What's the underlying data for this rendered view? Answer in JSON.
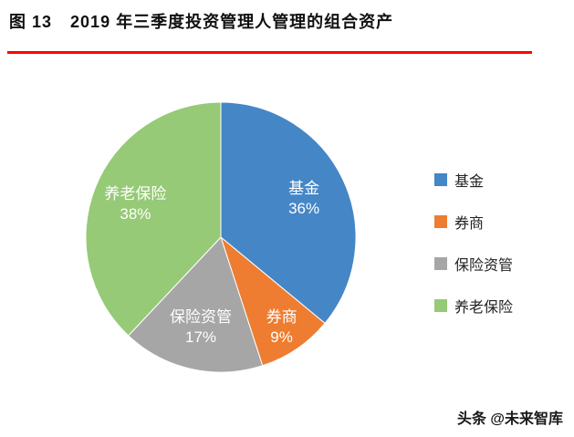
{
  "header": {
    "figure_label": "图 13",
    "title": "2019 年三季度投资管理人管理的组合资产"
  },
  "chart_data": {
    "type": "pie",
    "title": "2019 年三季度投资管理人管理的组合资产",
    "unit": "%",
    "start_angle_deg": 0,
    "direction": "clockwise",
    "legend_position": "right",
    "data_labels": "name_and_percent_inside",
    "slices": [
      {
        "label": "基金",
        "value": 36,
        "color": "#4586C6"
      },
      {
        "label": "券商",
        "value": 9,
        "color": "#EE7D31"
      },
      {
        "label": "保险资管",
        "value": 17,
        "color": "#A6A6A6"
      },
      {
        "label": "养老保险",
        "value": 38,
        "color": "#96CA76"
      }
    ]
  },
  "footer": {
    "watermark": "头条 @未来智库"
  },
  "style": {
    "rule_color": "#FE0000",
    "slice_label_color": "#FFFFFF"
  }
}
